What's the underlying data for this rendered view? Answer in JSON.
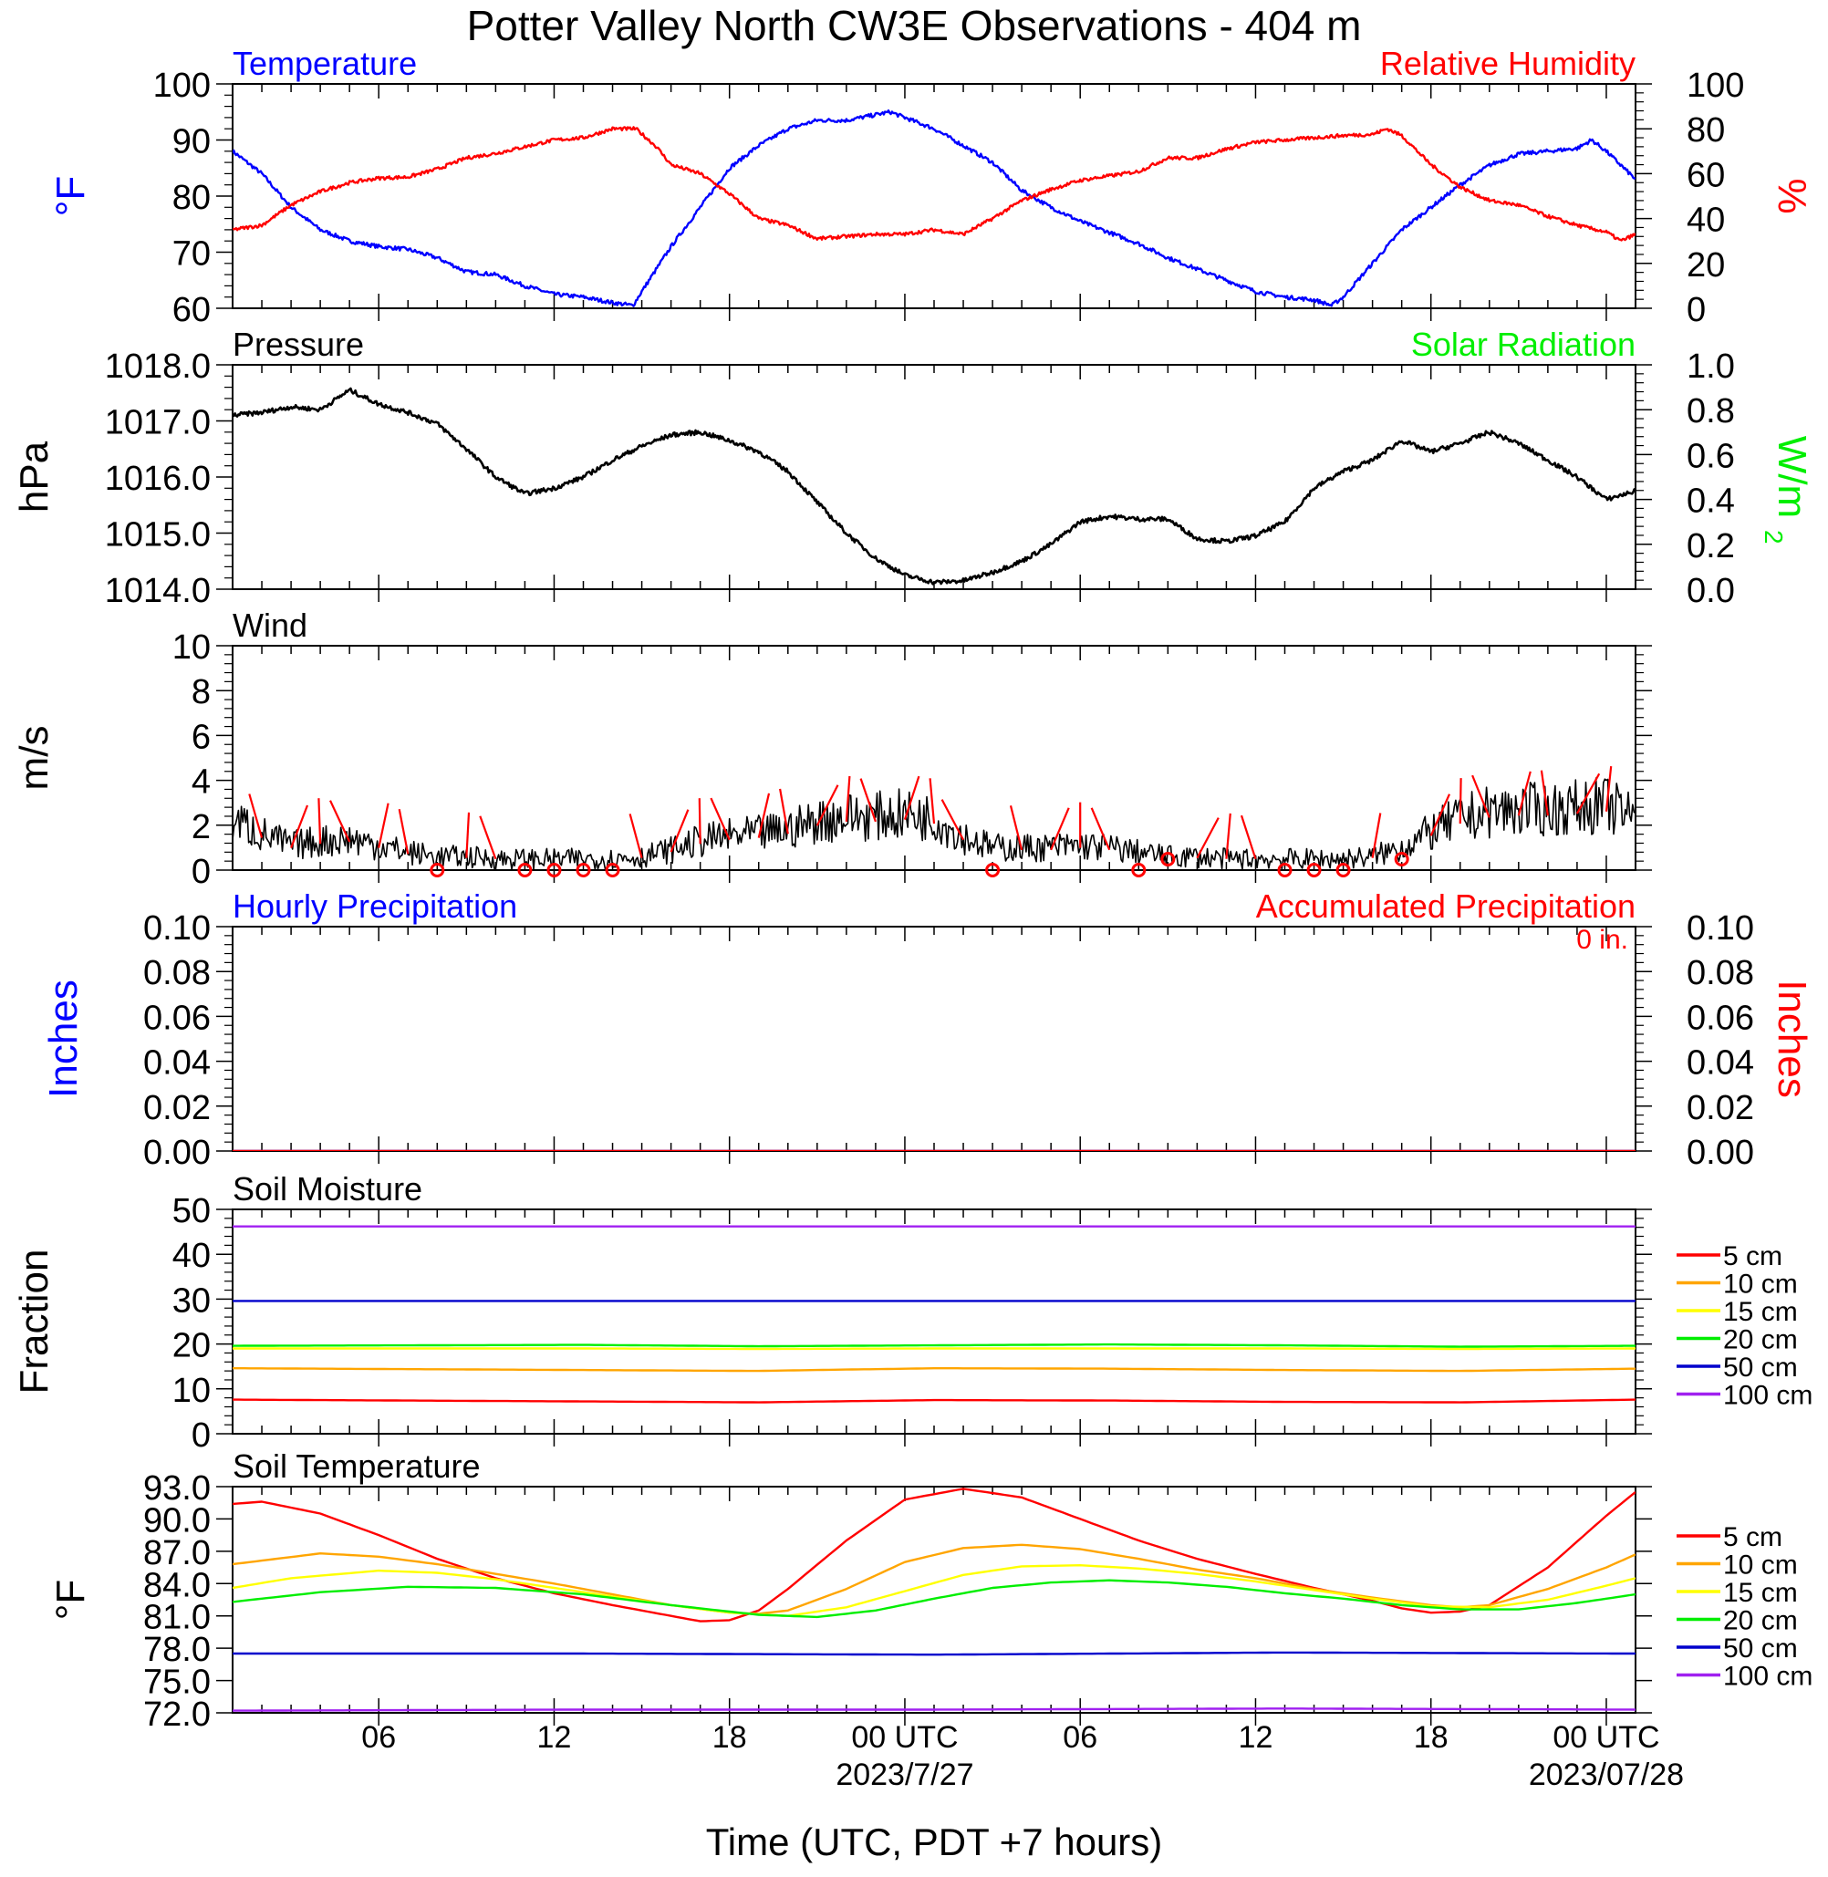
{
  "title": "Potter Valley North CW3E Observations - 404 m",
  "x_axis": {
    "title": "Time (UTC, PDT +7 hours)",
    "tick_labels": [
      "06",
      "12",
      "18",
      "00 UTC",
      "06",
      "12",
      "18",
      "00 UTC"
    ],
    "date_labels": [
      "2023/7/27",
      "2023/07/28"
    ]
  },
  "legend": {
    "soil_depths": [
      "5 cm",
      "10 cm",
      "15 cm",
      "20 cm",
      "50 cm",
      "100 cm"
    ]
  },
  "colors": {
    "temperature": "#0000ff",
    "humidity": "#ff0000",
    "pressure": "#000000",
    "solar": "#00ee00",
    "wind": "#000000",
    "wind_barb": "#ff0000",
    "hourly_precip": "#0000ff",
    "accum_precip": "#ff0000",
    "soil_5": "#ff0000",
    "soil_10": "#ffa500",
    "soil_15": "#ffff00",
    "soil_20": "#00ee00",
    "soil_50": "#0000cc",
    "soil_100": "#a020f0"
  },
  "chart_data": [
    {
      "id": "temp_rh",
      "type": "line",
      "x_unit": "hours UTC from 2023-07-26 01:00",
      "xlim": [
        1,
        49
      ],
      "left_title": "Temperature",
      "right_title": "Relative Humidity",
      "ylabel_left": "°F",
      "ylabel_right": "%",
      "ylim_left": [
        60,
        100
      ],
      "ylim_right": [
        0,
        100
      ],
      "yticks_left": [
        "100",
        "90",
        "80",
        "70",
        "60"
      ],
      "yticks_right": [
        "100",
        "80",
        "60",
        "40",
        "20",
        "0"
      ],
      "series": [
        {
          "name": "Temperature",
          "axis": "left",
          "x": [
            1,
            2,
            3,
            4,
            5,
            6,
            7,
            8,
            9,
            10,
            11,
            12,
            13,
            14,
            14.7,
            15,
            16,
            17,
            18,
            19,
            20,
            21,
            22,
            23,
            23.5,
            24,
            25,
            26,
            27,
            28,
            29,
            30,
            31,
            32,
            33,
            34,
            35,
            36,
            37,
            38,
            38.6,
            39,
            40,
            41,
            42,
            43,
            44,
            45,
            46,
            47,
            47.5,
            48,
            49
          ],
          "y": [
            88,
            84,
            78,
            74,
            72,
            71,
            70.5,
            69,
            66.5,
            66,
            64,
            62.5,
            62,
            61,
            60.5,
            63,
            71,
            78,
            85,
            89,
            92,
            93.5,
            93.5,
            94.5,
            95,
            94,
            92,
            89,
            86,
            81,
            78,
            75.5,
            73.5,
            71.5,
            69,
            67,
            65,
            63,
            62,
            61.5,
            60.5,
            62,
            68,
            74,
            78,
            82,
            85.5,
            87.5,
            88,
            88.5,
            90,
            88,
            83
          ]
        },
        {
          "name": "Relative Humidity",
          "axis": "right",
          "x": [
            1,
            2,
            3,
            4,
            5,
            6,
            7,
            8,
            9,
            10,
            11,
            12,
            13,
            14,
            14.8,
            15.5,
            16,
            17,
            18,
            19,
            20,
            21,
            22,
            23,
            24,
            25,
            26,
            27,
            28,
            29,
            30,
            31,
            32,
            33,
            34,
            35,
            36,
            37,
            38,
            39,
            40,
            40.5,
            41,
            42,
            43,
            44,
            45,
            46,
            47,
            48,
            48.5,
            49
          ],
          "y": [
            35,
            37,
            46,
            52,
            56,
            58,
            58.5,
            62,
            67,
            69,
            72,
            75,
            76,
            80,
            80,
            72,
            64,
            60,
            51,
            40,
            37,
            31,
            32,
            33,
            33,
            35,
            33,
            40,
            48,
            53,
            57,
            59,
            61,
            67,
            67,
            71,
            74,
            75,
            76,
            77,
            77.5,
            80,
            77,
            64,
            54,
            48,
            46,
            41,
            37,
            34,
            30,
            33
          ]
        }
      ]
    },
    {
      "id": "pressure_solar",
      "type": "line",
      "x_unit": "hours UTC from 2023-07-26 01:00",
      "xlim": [
        1,
        49
      ],
      "left_title": "Pressure",
      "right_title": "Solar Radiation",
      "ylabel_left": "hPa",
      "ylabel_right": "W/m",
      "ylabel_right_superscript": "2",
      "ylim_left": [
        1014.0,
        1018.0
      ],
      "ylim_right": [
        0.0,
        1.0
      ],
      "yticks_left": [
        "1018.0",
        "1017.0",
        "1016.0",
        "1015.0",
        "1014.0"
      ],
      "yticks_right": [
        "1.0",
        "0.8",
        "0.6",
        "0.4",
        "0.2",
        "0.0"
      ],
      "series": [
        {
          "name": "Pressure",
          "axis": "left",
          "x": [
            1,
            2,
            3,
            4,
            5,
            6,
            7,
            8,
            9,
            10,
            11,
            12,
            13,
            14,
            15,
            16,
            17,
            18,
            19,
            20,
            21,
            22,
            23,
            24,
            25,
            26,
            27,
            28,
            29,
            30,
            31,
            32,
            33,
            34,
            35,
            36,
            37,
            38,
            39,
            40,
            41,
            42,
            43,
            44,
            45,
            46,
            47,
            48,
            49
          ],
          "y": [
            1017.1,
            1017.15,
            1017.25,
            1017.2,
            1017.55,
            1017.3,
            1017.15,
            1016.95,
            1016.5,
            1016.0,
            1015.7,
            1015.8,
            1016.0,
            1016.3,
            1016.55,
            1016.75,
            1016.8,
            1016.65,
            1016.45,
            1016.1,
            1015.55,
            1015.0,
            1014.55,
            1014.25,
            1014.12,
            1014.15,
            1014.3,
            1014.5,
            1014.8,
            1015.2,
            1015.3,
            1015.25,
            1015.25,
            1014.9,
            1014.85,
            1014.95,
            1015.2,
            1015.8,
            1016.1,
            1016.3,
            1016.65,
            1016.45,
            1016.6,
            1016.8,
            1016.6,
            1016.3,
            1016.0,
            1015.6,
            1015.75
          ]
        }
      ]
    },
    {
      "id": "wind",
      "type": "line",
      "x_unit": "hours UTC from 2023-07-26 01:00",
      "xlim": [
        1,
        49
      ],
      "left_title": "Wind",
      "ylabel_left": "m/s",
      "ylim_left": [
        0,
        10
      ],
      "yticks_left": [
        "10",
        "8",
        "6",
        "4",
        "2",
        "0"
      ],
      "series": [
        {
          "name": "Wind",
          "axis": "left",
          "x": [
            1,
            2,
            3,
            4,
            5,
            6,
            7,
            8,
            9,
            10,
            11,
            12,
            13,
            14,
            15,
            16,
            17,
            18,
            19,
            20,
            21,
            22,
            23,
            24,
            25,
            26,
            27,
            28,
            29,
            30,
            31,
            32,
            33,
            34,
            35,
            36,
            37,
            38,
            39,
            40,
            41,
            42,
            43,
            44,
            45,
            46,
            47,
            48,
            49
          ],
          "y": [
            2.3,
            1.6,
            1.1,
            1.3,
            1.4,
            1.1,
            0.8,
            0.6,
            0.6,
            0.5,
            0.5,
            0.5,
            0.5,
            0.5,
            0.6,
            0.9,
            1.3,
            1.5,
            1.6,
            1.8,
            2.2,
            2.4,
            2.4,
            2.5,
            2.3,
            1.5,
            1.0,
            1.0,
            1.0,
            1.1,
            1.0,
            0.8,
            0.6,
            0.6,
            0.5,
            0.5,
            0.5,
            0.5,
            0.5,
            0.6,
            1.0,
            1.7,
            2.3,
            2.6,
            2.7,
            2.7,
            2.8,
            2.9,
            2.3
          ]
        }
      ],
      "calm_markers_x": [
        8,
        11,
        12,
        13,
        14,
        27,
        32,
        33,
        37,
        38,
        39,
        41
      ]
    },
    {
      "id": "precip",
      "type": "line",
      "x_unit": "hours UTC from 2023-07-26 01:00",
      "xlim": [
        1,
        49
      ],
      "left_title": "Hourly Precipitation",
      "right_title": "Accumulated Precipitation",
      "annotation": "0 in.",
      "ylabel_left": "Inches",
      "ylabel_right": "Inches",
      "ylim_left": [
        0,
        0.1
      ],
      "ylim_right": [
        0,
        0.1
      ],
      "yticks_left": [
        "0.10",
        "0.08",
        "0.06",
        "0.04",
        "0.02",
        "0.00"
      ],
      "yticks_right": [
        "0.10",
        "0.08",
        "0.06",
        "0.04",
        "0.02",
        "0.00"
      ],
      "series": [
        {
          "name": "Hourly Precipitation",
          "axis": "left",
          "x": [
            1,
            49
          ],
          "y": [
            0,
            0
          ]
        },
        {
          "name": "Accumulated Precipitation",
          "axis": "right",
          "x": [
            1,
            49
          ],
          "y": [
            0,
            0
          ]
        }
      ]
    },
    {
      "id": "soil_moisture",
      "type": "line",
      "x_unit": "hours UTC from 2023-07-26 01:00",
      "xlim": [
        1,
        49
      ],
      "left_title": "Soil Moisture",
      "ylabel_left": "Fraction",
      "ylim_left": [
        0,
        50
      ],
      "yticks_left": [
        "50",
        "40",
        "30",
        "20",
        "10",
        "0"
      ],
      "series": [
        {
          "name": "5 cm",
          "axis": "left",
          "x": [
            1,
            13,
            19,
            25,
            31,
            37,
            43,
            49
          ],
          "y": [
            7.6,
            7.2,
            7.0,
            7.5,
            7.4,
            7.1,
            7.0,
            7.6
          ]
        },
        {
          "name": "10 cm",
          "axis": "left",
          "x": [
            1,
            13,
            19,
            25,
            31,
            37,
            43,
            49
          ],
          "y": [
            14.6,
            14.2,
            14.0,
            14.6,
            14.5,
            14.2,
            14.0,
            14.5
          ]
        },
        {
          "name": "15 cm",
          "axis": "left",
          "x": [
            1,
            13,
            19,
            25,
            31,
            37,
            43,
            49
          ],
          "y": [
            19.0,
            19.0,
            18.9,
            19.0,
            19.0,
            19.0,
            18.9,
            19.0
          ]
        },
        {
          "name": "20 cm",
          "axis": "left",
          "x": [
            1,
            13,
            19,
            25,
            31,
            37,
            43,
            49
          ],
          "y": [
            19.6,
            19.8,
            19.5,
            19.7,
            19.9,
            19.7,
            19.4,
            19.6
          ]
        },
        {
          "name": "50 cm",
          "axis": "left",
          "x": [
            1,
            13,
            25,
            37,
            49
          ],
          "y": [
            29.6,
            29.6,
            29.6,
            29.6,
            29.6
          ]
        },
        {
          "name": "100 cm",
          "axis": "left",
          "x": [
            1,
            13,
            25,
            37,
            49
          ],
          "y": [
            46.2,
            46.2,
            46.2,
            46.2,
            46.2
          ]
        }
      ]
    },
    {
      "id": "soil_temperature",
      "type": "line",
      "x_unit": "hours UTC from 2023-07-26 01:00",
      "xlim": [
        1,
        49
      ],
      "left_title": "Soil Temperature",
      "ylabel_left": "°F",
      "ylim_left": [
        72.0,
        93.0
      ],
      "yticks_left": [
        "93.0",
        "90.0",
        "87.0",
        "84.0",
        "81.0",
        "78.0",
        "75.0",
        "72.0"
      ],
      "series": [
        {
          "name": "5 cm",
          "axis": "left",
          "x": [
            1,
            2,
            4,
            6,
            8,
            10,
            12,
            14,
            16,
            17,
            18,
            19,
            20,
            22,
            24,
            26,
            28,
            30,
            32,
            34,
            36,
            38,
            40,
            41,
            42,
            43,
            44,
            46,
            48,
            49
          ],
          "y": [
            91.4,
            91.6,
            90.5,
            88.5,
            86.3,
            84.5,
            83.1,
            82.0,
            81.0,
            80.5,
            80.6,
            81.5,
            83.5,
            88.0,
            91.8,
            92.8,
            92.0,
            90.0,
            88.0,
            86.3,
            84.9,
            83.6,
            82.4,
            81.7,
            81.3,
            81.4,
            82.0,
            85.5,
            90.3,
            92.5
          ]
        },
        {
          "name": "10 cm",
          "axis": "left",
          "x": [
            1,
            4,
            6,
            8,
            10,
            12,
            14,
            16,
            18,
            19,
            20,
            22,
            24,
            26,
            28,
            30,
            32,
            34,
            36,
            38,
            40,
            42,
            43,
            44,
            46,
            48,
            49
          ],
          "y": [
            85.8,
            86.8,
            86.5,
            85.8,
            84.9,
            84.0,
            83.0,
            82.0,
            81.3,
            81.2,
            81.5,
            83.5,
            86.0,
            87.3,
            87.6,
            87.2,
            86.3,
            85.3,
            84.5,
            83.5,
            82.7,
            82.0,
            81.8,
            82.0,
            83.5,
            85.5,
            86.7
          ]
        },
        {
          "name": "15 cm",
          "axis": "left",
          "x": [
            1,
            3,
            6,
            8,
            10,
            12,
            14,
            16,
            18,
            20,
            22,
            24,
            26,
            28,
            30,
            32,
            34,
            36,
            38,
            40,
            42,
            44,
            46,
            48,
            49
          ],
          "y": [
            83.6,
            84.5,
            85.2,
            85.0,
            84.4,
            83.6,
            82.8,
            82.0,
            81.3,
            81.0,
            81.8,
            83.3,
            84.8,
            85.6,
            85.7,
            85.4,
            84.9,
            84.2,
            83.4,
            82.6,
            81.9,
            81.8,
            82.5,
            83.8,
            84.5
          ]
        },
        {
          "name": "20 cm",
          "axis": "left",
          "x": [
            1,
            4,
            7,
            10,
            13,
            16,
            19,
            21,
            23,
            25,
            27,
            29,
            31,
            33,
            35,
            37,
            39,
            41,
            43,
            45,
            47,
            49
          ],
          "y": [
            82.3,
            83.2,
            83.7,
            83.6,
            83.0,
            82.0,
            81.1,
            80.9,
            81.5,
            82.6,
            83.6,
            84.1,
            84.3,
            84.1,
            83.7,
            83.1,
            82.6,
            82.0,
            81.6,
            81.6,
            82.2,
            83.0
          ]
        },
        {
          "name": "50 cm",
          "axis": "left",
          "x": [
            1,
            13,
            25,
            37,
            49
          ],
          "y": [
            77.5,
            77.5,
            77.4,
            77.6,
            77.5
          ]
        },
        {
          "name": "100 cm",
          "axis": "left",
          "x": [
            1,
            13,
            25,
            37,
            49
          ],
          "y": [
            72.2,
            72.3,
            72.3,
            72.4,
            72.3
          ]
        }
      ]
    }
  ]
}
